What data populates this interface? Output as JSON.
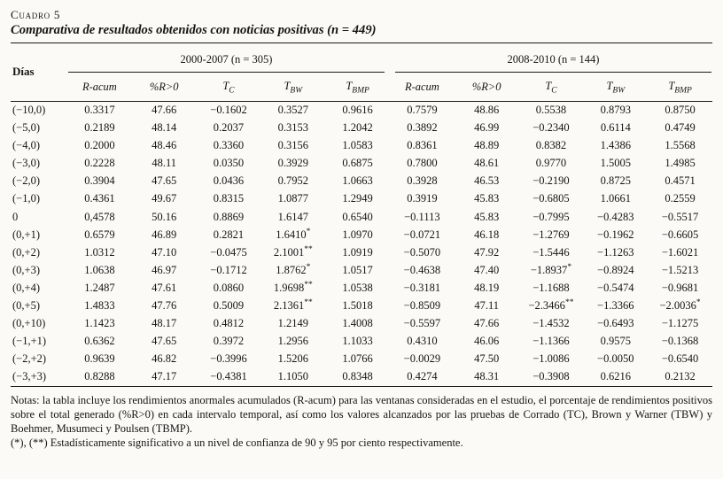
{
  "page": {
    "kicker": "Cuadro 5",
    "title": "Comparativa de resultados obtenidos con noticias positivas (n = 449)"
  },
  "table": {
    "row_header": "Días",
    "groups": [
      {
        "label": "2000-2007 (n = 305)",
        "columns": [
          {
            "label": "R-acum"
          },
          {
            "label": "%R>0"
          },
          {
            "label": "T",
            "sub": "C"
          },
          {
            "label": "T",
            "sub": "BW"
          },
          {
            "label": "T",
            "sub": "BMP"
          }
        ]
      },
      {
        "label": "2008-2010 (n = 144)",
        "columns": [
          {
            "label": "R-acum"
          },
          {
            "label": "%R>0"
          },
          {
            "label": "T",
            "sub": "C"
          },
          {
            "label": "T",
            "sub": "BW"
          },
          {
            "label": "T",
            "sub": "BMP"
          }
        ]
      }
    ],
    "rows": [
      {
        "dias": "(−10,0)",
        "values": [
          "0.3317",
          "47.66",
          "−0.1602",
          "0.3527",
          "0.9616",
          "0.7579",
          "48.86",
          "0.5538",
          "0.8793",
          "0.8750"
        ]
      },
      {
        "dias": "(−5,0)",
        "values": [
          "0.2189",
          "48.14",
          "0.2037",
          "0.3153",
          "1.2042",
          "0.3892",
          "46.99",
          "−0.2340",
          "0.6114",
          "0.4749"
        ]
      },
      {
        "dias": "(−4,0)",
        "values": [
          "0.2000",
          "48.46",
          "0.3360",
          "0.3156",
          "1.0583",
          "0.8361",
          "48.89",
          "0.8382",
          "1.4386",
          "1.5568"
        ]
      },
      {
        "dias": "(−3,0)",
        "values": [
          "0.2228",
          "48.11",
          "0.0350",
          "0.3929",
          "0.6875",
          "0.7800",
          "48.61",
          "0.9770",
          "1.5005",
          "1.4985"
        ]
      },
      {
        "dias": "(−2,0)",
        "values": [
          "0.3904",
          "47.65",
          "0.0436",
          "0.7952",
          "1.0663",
          "0.3928",
          "46.53",
          "−0.2190",
          "0.8725",
          "0.4571"
        ]
      },
      {
        "dias": "(−1,0)",
        "values": [
          "0.4361",
          "49.67",
          "0.8315",
          "1.0877",
          "1.2949",
          "0.3919",
          "45.83",
          "−0.6805",
          "1.0661",
          "0.2559"
        ]
      },
      {
        "dias": "0",
        "values": [
          "0,4578",
          "50.16",
          "0.8869",
          "1.6147",
          "0.6540",
          "−0.1113",
          "45.83",
          "−0.7995",
          "−0.4283",
          "−0.5517"
        ]
      },
      {
        "dias": "(0,+1)",
        "values": [
          "0.6579",
          "46.89",
          "0.2821",
          "1.6410*",
          "1.0970",
          "−0.0721",
          "46.18",
          "−1.2769",
          "−0.1962",
          "−0.6605"
        ]
      },
      {
        "dias": "(0,+2)",
        "values": [
          "1.0312",
          "47.10",
          "−0.0475",
          "2.1001**",
          "1.0919",
          "−0.5070",
          "47.92",
          "−1.5446",
          "−1.1263",
          "−1.6021"
        ]
      },
      {
        "dias": "(0,+3)",
        "values": [
          "1.0638",
          "46.97",
          "−0.1712",
          "1.8762*",
          "1.0517",
          "−0.4638",
          "47.40",
          "−1.8937*",
          "−0.8924",
          "−1.5213"
        ]
      },
      {
        "dias": "(0,+4)",
        "values": [
          "1.2487",
          "47.61",
          "0.0860",
          "1.9698**",
          "1.0538",
          "−0.3181",
          "48.19",
          "−1.1688",
          "−0.5474",
          "−0.9681"
        ]
      },
      {
        "dias": "(0,+5)",
        "values": [
          "1.4833",
          "47.76",
          "0.5009",
          "2.1361**",
          "1.5018",
          "−0.8509",
          "47.11",
          "−2.3466**",
          "−1.3366",
          "−2.0036*"
        ]
      },
      {
        "dias": "(0,+10)",
        "values": [
          "1.1423",
          "48.17",
          "0.4812",
          "1.2149",
          "1.4008",
          "−0.5597",
          "47.66",
          "−1.4532",
          "−0.6493",
          "−1.1275"
        ]
      },
      {
        "dias": "(−1,+1)",
        "values": [
          "0.6362",
          "47.65",
          "0.3972",
          "1.2956",
          "1.1033",
          "0.4310",
          "46.06",
          "−1.1366",
          "0.9575",
          "−0.1368"
        ]
      },
      {
        "dias": "(−2,+2)",
        "values": [
          "0.9639",
          "46.82",
          "−0.3996",
          "1.5206",
          "1.0766",
          "−0.0029",
          "47.50",
          "−1.0086",
          "−0.0050",
          "−0.6540"
        ]
      },
      {
        "dias": "(−3,+3)",
        "values": [
          "0.8288",
          "47.17",
          "−0.4381",
          "1.1050",
          "0.8348",
          "0.4274",
          "48.31",
          "−0.3908",
          "0.6216",
          "0.2132"
        ]
      }
    ]
  },
  "notes": {
    "body": "Notas: la tabla incluye los rendimientos anormales acumulados (R-acum) para las ventanas consideradas en el estudio, el porcentaje de rendimientos positivos sobre el total generado (%R>0) en cada intervalo temporal, así como los valores alcanzados por las pruebas de Corrado (TC), Brown y Warner (TBW) y Boehmer, Musumeci y Poulsen (TBMP).",
    "significance": "(*), (**) Estadísticamente significativo a un nivel de confianza de 90 y 95 por ciento respectivamente."
  }
}
